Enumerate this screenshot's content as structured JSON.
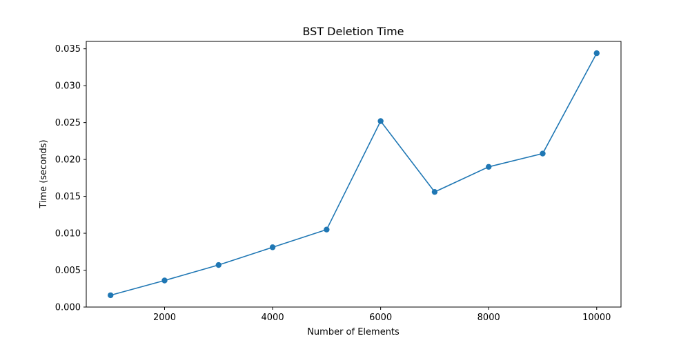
{
  "chart_data": {
    "type": "line",
    "title": "BST Deletion Time",
    "xlabel": "Number of Elements",
    "ylabel": "Time (seconds)",
    "x": [
      1000,
      2000,
      3000,
      4000,
      5000,
      6000,
      7000,
      8000,
      9000,
      10000
    ],
    "series": [
      {
        "values": [
          0.0016,
          0.0036,
          0.0057,
          0.0081,
          0.0105,
          0.0252,
          0.0156,
          0.019,
          0.0208,
          0.0344
        ],
        "color": "#1f77b4",
        "marker": "circle"
      }
    ],
    "xlim": [
      550,
      10450
    ],
    "ylim": [
      0,
      0.036
    ],
    "xticks": [
      2000,
      4000,
      6000,
      8000,
      10000
    ],
    "xtick_labels": [
      "2000",
      "4000",
      "6000",
      "8000",
      "10000"
    ],
    "yticks": [
      0,
      0.005,
      0.01,
      0.015,
      0.02,
      0.025,
      0.03,
      0.035
    ],
    "ytick_labels": [
      "0.000",
      "0.005",
      "0.010",
      "0.015",
      "0.020",
      "0.025",
      "0.030",
      "0.035"
    ],
    "grid": false,
    "legend": false
  }
}
